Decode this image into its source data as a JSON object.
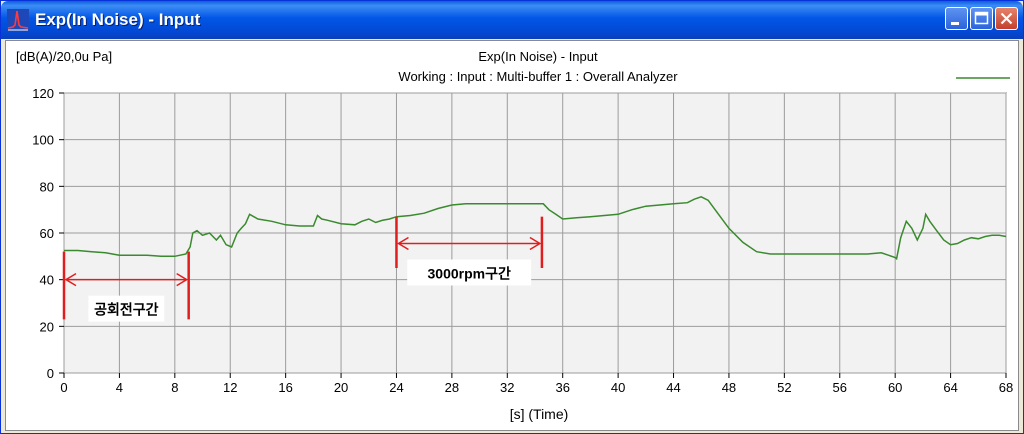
{
  "window": {
    "title": "Exp(In Noise) - Input",
    "icon": "waveform-icon",
    "buttons": [
      "minimize-icon",
      "maximize-icon",
      "close-icon"
    ]
  },
  "chart_data": {
    "type": "line",
    "title": "Exp(In Noise) - Input",
    "subtitle": "Working : Input : Multi-buffer 1 : Overall Analyzer",
    "ylabel": "[dB(A)/20,0u Pa]",
    "xlabel": "[s] (Time)",
    "xlim": [
      0,
      68
    ],
    "ylim": [
      0,
      120
    ],
    "xticks": [
      0,
      4,
      8,
      12,
      16,
      20,
      24,
      28,
      32,
      36,
      40,
      44,
      48,
      52,
      56,
      60,
      64,
      68
    ],
    "yticks": [
      0,
      20,
      40,
      60,
      80,
      100,
      120
    ],
    "grid": true,
    "legend": "top-right",
    "series": [
      {
        "color": "#3a8a2e",
        "x": [
          0,
          1,
          2,
          3,
          4,
          5,
          6,
          7,
          8,
          8.8,
          9.1,
          9.3,
          9.6,
          10,
          10.5,
          11,
          11.3,
          11.7,
          12.1,
          12.5,
          12.8,
          13.1,
          13.4,
          14,
          15,
          16,
          17,
          18,
          18.3,
          18.6,
          19,
          20,
          21,
          21.5,
          22,
          22.5,
          23,
          23.5,
          24,
          25,
          26,
          27,
          28,
          29,
          30,
          31,
          32,
          33,
          34,
          34.6,
          35,
          35.5,
          36,
          37,
          38,
          39,
          40,
          41,
          42,
          43,
          44,
          45,
          45.5,
          46,
          46.5,
          47,
          48,
          49,
          50,
          51,
          52,
          53,
          54,
          55,
          56,
          57,
          58,
          59,
          60,
          60.1,
          60.4,
          60.8,
          61.2,
          61.6,
          62,
          62.2,
          62.5,
          63,
          63.5,
          64,
          64.5,
          65,
          65.5,
          66,
          66.5,
          67,
          67.5,
          68
        ],
        "values": [
          52.5,
          52.5,
          52,
          51.5,
          50.5,
          50.5,
          50.5,
          50,
          50,
          51,
          54,
          60,
          61,
          59,
          60,
          57,
          59,
          55,
          54,
          60,
          62,
          64,
          68,
          66,
          65,
          63.5,
          63,
          63,
          67.5,
          66,
          65.5,
          64,
          63.5,
          65,
          66,
          64.5,
          65.5,
          66,
          67,
          67.5,
          68.5,
          70.5,
          72,
          72.5,
          72.5,
          72.5,
          72.5,
          72.5,
          72.5,
          72.5,
          70,
          68,
          66,
          66.5,
          67,
          67.5,
          68,
          70,
          71.5,
          72,
          72.5,
          73,
          74.5,
          75.5,
          74,
          70,
          62,
          56,
          52,
          51,
          51,
          51,
          51,
          51,
          51,
          51,
          51,
          51.5,
          49.5,
          49,
          58,
          65,
          62,
          57,
          62,
          68,
          65,
          61,
          57,
          55,
          55.5,
          57,
          58,
          57.5,
          58.5,
          59,
          59,
          58.5
        ]
      }
    ],
    "annotations": [
      {
        "label": "공회전구간",
        "x_start": 0,
        "x_end": 9,
        "y_from": 52,
        "y_to": 23,
        "arrow_y": 40,
        "color": "#e01e1e"
      },
      {
        "label": "3000rpm구간",
        "x_start": 24,
        "x_end": 34.5,
        "y_from": 67,
        "y_to": 45,
        "arrow_y": 55.5,
        "color": "#e01e1e"
      }
    ]
  }
}
